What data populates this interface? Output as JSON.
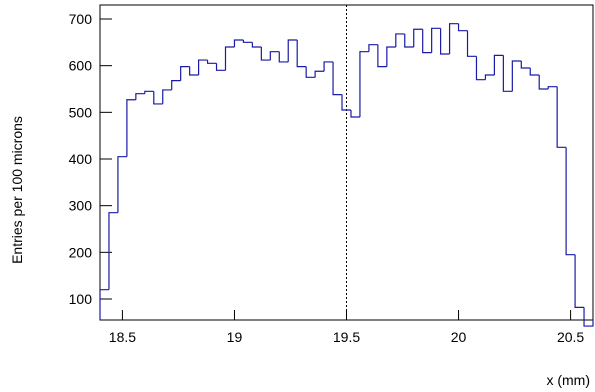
{
  "chart_data": {
    "type": "histogram",
    "x_label": "x (mm)",
    "y_label": "Entries per 100 microns",
    "bins": [
      18.4,
      18.44,
      18.48,
      18.52,
      18.56,
      18.6,
      18.64,
      18.68,
      18.72,
      18.76,
      18.8,
      18.84,
      18.88,
      18.92,
      18.96,
      19.0,
      19.04,
      19.08,
      19.12,
      19.16,
      19.2,
      19.24,
      19.28,
      19.32,
      19.36,
      19.4,
      19.44,
      19.48,
      19.52,
      19.56,
      19.6,
      19.64,
      19.68,
      19.72,
      19.76,
      19.8,
      19.84,
      19.88,
      19.92,
      19.96,
      20.0,
      20.04,
      20.08,
      20.12,
      20.16,
      20.2,
      20.24,
      20.28,
      20.32,
      20.36,
      20.4,
      20.44,
      20.48,
      20.52,
      20.56,
      20.6
    ],
    "values": [
      120,
      285,
      405,
      527,
      540,
      545,
      518,
      548,
      568,
      598,
      580,
      612,
      605,
      590,
      640,
      655,
      650,
      640,
      612,
      630,
      608,
      655,
      598,
      575,
      588,
      608,
      538,
      505,
      490,
      630,
      645,
      598,
      640,
      668,
      640,
      678,
      628,
      680,
      625,
      690,
      675,
      620,
      570,
      580,
      622,
      545,
      610,
      595,
      580,
      550,
      555,
      425,
      195,
      82,
      42
    ],
    "color": "#1a1aa6",
    "vline": 19.5,
    "xlim": [
      18.4,
      20.6
    ],
    "xticks": [
      18.5,
      19,
      19.5,
      20,
      20.5
    ],
    "ylim": [
      55,
      730
    ],
    "yticks": [
      100,
      200,
      300,
      400,
      500,
      600,
      700
    ]
  }
}
